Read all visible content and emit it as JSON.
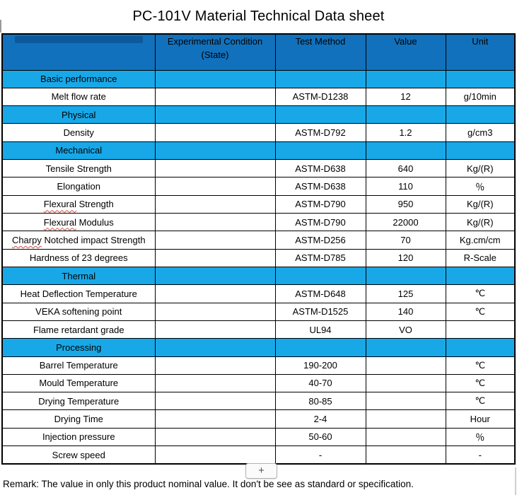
{
  "title": "PC-101V Material Technical Data sheet",
  "add_button_label": "+",
  "remark": "Remark: The value in only this product nominal value. It don't be see as standard or specification.",
  "colors": {
    "header_bg": "#1271bc",
    "section_bg": "#18a8e8",
    "border": "#000000",
    "squiggle": "#d9493c"
  },
  "table": {
    "headers": {
      "blank": "",
      "condition_line1": "Experimental Condition",
      "condition_line2": "(State)",
      "method": "Test Method",
      "value": "Value",
      "unit": "Unit"
    },
    "rows": [
      {
        "type": "section",
        "label": "Basic performance"
      },
      {
        "type": "data",
        "label": "Melt flow rate",
        "method": "ASTM-D1238",
        "value": "12",
        "unit": "g/10min"
      },
      {
        "type": "section",
        "label": "Physical"
      },
      {
        "type": "data",
        "label": "Density",
        "method": "ASTM-D792",
        "value": "1.2",
        "unit": "g/cm3"
      },
      {
        "type": "section",
        "label": "Mechanical"
      },
      {
        "type": "data",
        "label": "Tensile Strength",
        "method": "ASTM-D638",
        "value": "640",
        "unit": "Kg/(R)"
      },
      {
        "type": "data",
        "label": "Elongation",
        "method": "ASTM-D638",
        "value": "110",
        "unit": "％"
      },
      {
        "type": "data",
        "label": "Flexural Strength",
        "method": "ASTM-D790",
        "value": "950",
        "unit": "Kg/(R)",
        "squiggle": "Flexural"
      },
      {
        "type": "data",
        "label": "Flexural Modulus",
        "method": "ASTM-D790",
        "value": "22000",
        "unit": "Kg/(R)",
        "squiggle": "Flexural"
      },
      {
        "type": "data",
        "label": "Charpy Notched impact Strength",
        "method": "ASTM-D256",
        "value": "70",
        "unit": "Kg.cm/cm",
        "squiggle": "Charpy"
      },
      {
        "type": "data",
        "label": "Hardness of 23 degrees",
        "method": "ASTM-D785",
        "value": "120",
        "unit": "R-Scale"
      },
      {
        "type": "section",
        "label": "Thermal"
      },
      {
        "type": "data",
        "label": "Heat Deflection Temperature",
        "method": "ASTM-D648",
        "value": "125",
        "unit": "℃"
      },
      {
        "type": "data",
        "label": "VEKA softening point",
        "method": "ASTM-D1525",
        "value": "140",
        "unit": "℃"
      },
      {
        "type": "data",
        "label": "Flame retardant grade",
        "method": "UL94",
        "value": "VO",
        "unit": ""
      },
      {
        "type": "section",
        "label": "Processing"
      },
      {
        "type": "data",
        "label": "Barrel Temperature",
        "method": "190-200",
        "value": "",
        "unit": "℃"
      },
      {
        "type": "data",
        "label": "Mould Temperature",
        "method": "40-70",
        "value": "",
        "unit": "℃"
      },
      {
        "type": "data",
        "label": "Drying Temperature",
        "method": "80-85",
        "value": "",
        "unit": "℃"
      },
      {
        "type": "data",
        "label": "Drying Time",
        "method": "2-4",
        "value": "",
        "unit": "Hour"
      },
      {
        "type": "data",
        "label": "Injection pressure",
        "method": "50-60",
        "value": "",
        "unit": "％"
      },
      {
        "type": "data",
        "label": "Screw speed",
        "method": "-",
        "value": "",
        "unit": "-"
      }
    ]
  }
}
